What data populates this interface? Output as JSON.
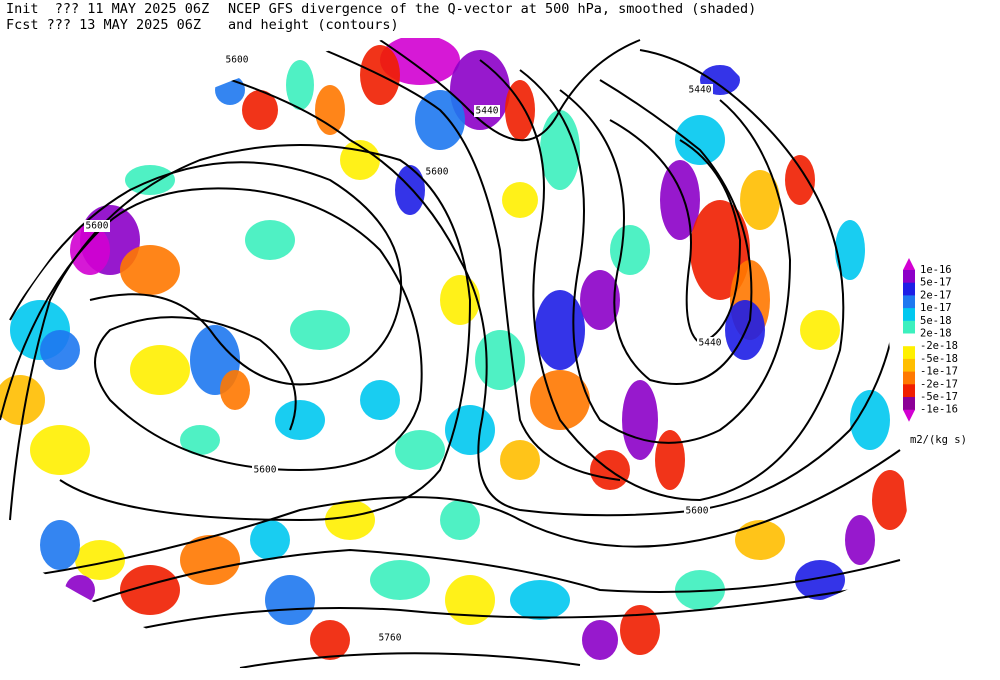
{
  "header": {
    "init": "Init  ??? 11 MAY 2025 06Z",
    "fcst": "Fcst ??? 13 MAY 2025 06Z",
    "title": "NCEP GFS divergence of the Q-vector at 500 hPa, smoothed (shaded)",
    "subtitle": "and height (contours)"
  },
  "legend": {
    "labels": [
      "1e-16",
      "5e-17",
      "2e-17",
      "1e-17",
      "5e-18",
      "2e-18",
      "-2e-18",
      "-5e-18",
      "-1e-17",
      "-2e-17",
      "-5e-17",
      "-1e-16"
    ],
    "unit": "m2/(kg s)"
  },
  "contour_labels": [
    "5600",
    "5440",
    "5440",
    "5600",
    "5600",
    "5440",
    "5600",
    "5600",
    "5760"
  ]
}
